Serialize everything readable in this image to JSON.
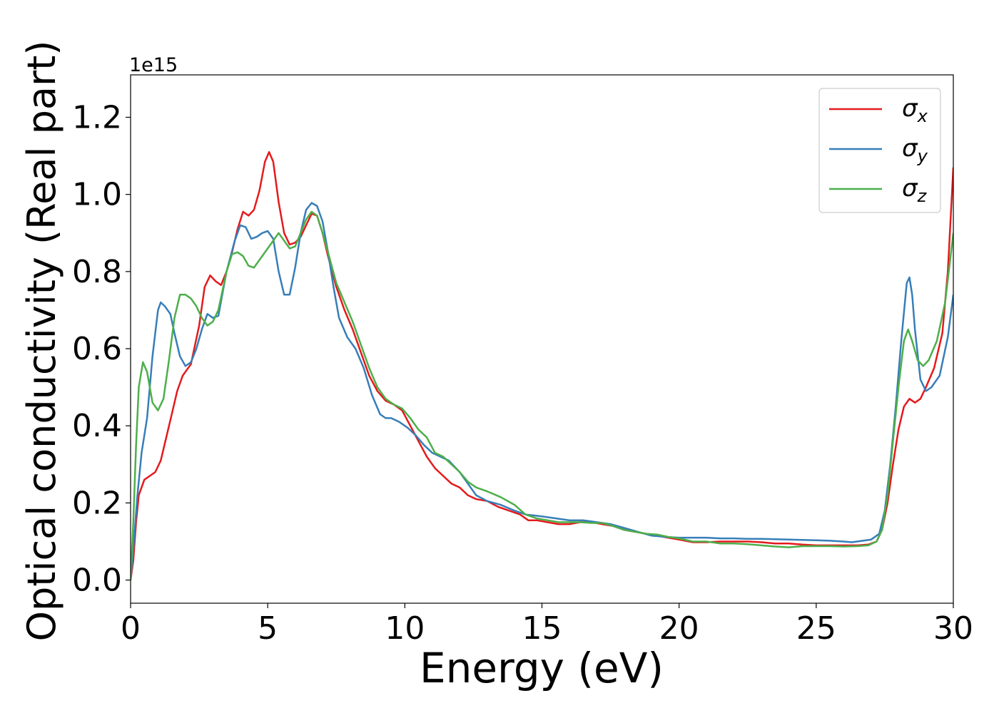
{
  "chart_data": {
    "type": "line",
    "xlabel": "Energy (eV)",
    "ylabel": "Optical conductivity (Real part)",
    "y_offset_label": "1e15",
    "xlim": [
      0,
      30
    ],
    "ylim": [
      -0.06,
      1.31
    ],
    "xticks": [
      0,
      5,
      10,
      15,
      20,
      25,
      30
    ],
    "xtick_labels": [
      "0",
      "5",
      "10",
      "15",
      "20",
      "25",
      "30"
    ],
    "yticks": [
      0.0,
      0.2,
      0.4,
      0.6,
      0.8,
      1.0,
      1.2
    ],
    "ytick_labels": [
      "0.0",
      "0.2",
      "0.4",
      "0.6",
      "0.8",
      "1.0",
      "1.2"
    ],
    "grid": false,
    "legend_position": "top-right",
    "series": [
      {
        "name": "σx",
        "legend_base": "σ",
        "legend_sub": "x",
        "color": "#e41a1c",
        "points": [
          [
            0,
            0.0
          ],
          [
            0.1,
            0.05
          ],
          [
            0.2,
            0.15
          ],
          [
            0.3,
            0.22
          ],
          [
            0.5,
            0.26
          ],
          [
            0.7,
            0.27
          ],
          [
            0.9,
            0.28
          ],
          [
            1.1,
            0.31
          ],
          [
            1.3,
            0.37
          ],
          [
            1.5,
            0.43
          ],
          [
            1.7,
            0.49
          ],
          [
            1.9,
            0.53
          ],
          [
            2.2,
            0.56
          ],
          [
            2.5,
            0.66
          ],
          [
            2.7,
            0.76
          ],
          [
            2.9,
            0.79
          ],
          [
            3.1,
            0.775
          ],
          [
            3.3,
            0.765
          ],
          [
            3.5,
            0.8
          ],
          [
            3.7,
            0.85
          ],
          [
            3.9,
            0.91
          ],
          [
            4.1,
            0.955
          ],
          [
            4.3,
            0.945
          ],
          [
            4.5,
            0.96
          ],
          [
            4.7,
            1.01
          ],
          [
            4.9,
            1.085
          ],
          [
            5.05,
            1.11
          ],
          [
            5.2,
            1.085
          ],
          [
            5.4,
            0.98
          ],
          [
            5.6,
            0.9
          ],
          [
            5.8,
            0.87
          ],
          [
            6.0,
            0.875
          ],
          [
            6.2,
            0.89
          ],
          [
            6.4,
            0.92
          ],
          [
            6.6,
            0.95
          ],
          [
            6.8,
            0.945
          ],
          [
            7.0,
            0.9
          ],
          [
            7.2,
            0.84
          ],
          [
            7.5,
            0.76
          ],
          [
            7.8,
            0.7
          ],
          [
            8.1,
            0.65
          ],
          [
            8.4,
            0.59
          ],
          [
            8.7,
            0.53
          ],
          [
            9.0,
            0.49
          ],
          [
            9.3,
            0.465
          ],
          [
            9.6,
            0.455
          ],
          [
            9.9,
            0.44
          ],
          [
            10.2,
            0.4
          ],
          [
            10.5,
            0.36
          ],
          [
            10.8,
            0.32
          ],
          [
            11.1,
            0.29
          ],
          [
            11.4,
            0.27
          ],
          [
            11.7,
            0.25
          ],
          [
            12.0,
            0.24
          ],
          [
            12.3,
            0.22
          ],
          [
            12.6,
            0.21
          ],
          [
            13.0,
            0.205
          ],
          [
            13.4,
            0.19
          ],
          [
            13.8,
            0.18
          ],
          [
            14.2,
            0.17
          ],
          [
            14.5,
            0.155
          ],
          [
            14.8,
            0.155
          ],
          [
            15.2,
            0.15
          ],
          [
            15.6,
            0.145
          ],
          [
            16.0,
            0.145
          ],
          [
            16.4,
            0.15
          ],
          [
            16.8,
            0.15
          ],
          [
            17.2,
            0.145
          ],
          [
            17.6,
            0.14
          ],
          [
            18.0,
            0.13
          ],
          [
            18.4,
            0.125
          ],
          [
            18.8,
            0.12
          ],
          [
            19.2,
            0.115
          ],
          [
            19.6,
            0.11
          ],
          [
            20.0,
            0.105
          ],
          [
            20.5,
            0.098
          ],
          [
            21.0,
            0.098
          ],
          [
            21.5,
            0.1
          ],
          [
            22.0,
            0.1
          ],
          [
            22.5,
            0.1
          ],
          [
            23.0,
            0.098
          ],
          [
            23.5,
            0.095
          ],
          [
            24.0,
            0.095
          ],
          [
            24.5,
            0.092
          ],
          [
            25.0,
            0.09
          ],
          [
            25.5,
            0.09
          ],
          [
            26.0,
            0.09
          ],
          [
            26.5,
            0.09
          ],
          [
            26.9,
            0.092
          ],
          [
            27.2,
            0.1
          ],
          [
            27.4,
            0.13
          ],
          [
            27.6,
            0.2
          ],
          [
            27.8,
            0.3
          ],
          [
            28.0,
            0.39
          ],
          [
            28.2,
            0.45
          ],
          [
            28.4,
            0.47
          ],
          [
            28.6,
            0.46
          ],
          [
            28.8,
            0.47
          ],
          [
            29.0,
            0.5
          ],
          [
            29.3,
            0.55
          ],
          [
            29.6,
            0.64
          ],
          [
            29.8,
            0.8
          ],
          [
            30.0,
            1.07
          ]
        ]
      },
      {
        "name": "σy",
        "legend_base": "σ",
        "legend_sub": "y",
        "color": "#377eb8",
        "points": [
          [
            0,
            0.0
          ],
          [
            0.1,
            0.08
          ],
          [
            0.25,
            0.22
          ],
          [
            0.4,
            0.33
          ],
          [
            0.6,
            0.42
          ],
          [
            0.8,
            0.58
          ],
          [
            1.0,
            0.7
          ],
          [
            1.1,
            0.72
          ],
          [
            1.25,
            0.71
          ],
          [
            1.45,
            0.69
          ],
          [
            1.6,
            0.64
          ],
          [
            1.8,
            0.58
          ],
          [
            2.0,
            0.555
          ],
          [
            2.2,
            0.565
          ],
          [
            2.4,
            0.6
          ],
          [
            2.6,
            0.65
          ],
          [
            2.8,
            0.69
          ],
          [
            3.0,
            0.68
          ],
          [
            3.2,
            0.685
          ],
          [
            3.5,
            0.8
          ],
          [
            3.8,
            0.88
          ],
          [
            4.0,
            0.92
          ],
          [
            4.2,
            0.915
          ],
          [
            4.4,
            0.885
          ],
          [
            4.6,
            0.89
          ],
          [
            4.8,
            0.9
          ],
          [
            5.0,
            0.905
          ],
          [
            5.2,
            0.885
          ],
          [
            5.4,
            0.8
          ],
          [
            5.6,
            0.74
          ],
          [
            5.8,
            0.74
          ],
          [
            6.0,
            0.81
          ],
          [
            6.2,
            0.9
          ],
          [
            6.4,
            0.96
          ],
          [
            6.6,
            0.978
          ],
          [
            6.8,
            0.97
          ],
          [
            7.0,
            0.93
          ],
          [
            7.2,
            0.85
          ],
          [
            7.4,
            0.76
          ],
          [
            7.6,
            0.68
          ],
          [
            7.9,
            0.63
          ],
          [
            8.2,
            0.6
          ],
          [
            8.5,
            0.55
          ],
          [
            8.8,
            0.48
          ],
          [
            9.1,
            0.43
          ],
          [
            9.3,
            0.42
          ],
          [
            9.5,
            0.42
          ],
          [
            9.8,
            0.41
          ],
          [
            10.1,
            0.395
          ],
          [
            10.4,
            0.375
          ],
          [
            10.7,
            0.35
          ],
          [
            11.0,
            0.33
          ],
          [
            11.3,
            0.32
          ],
          [
            11.6,
            0.31
          ],
          [
            12.0,
            0.28
          ],
          [
            12.3,
            0.25
          ],
          [
            12.6,
            0.22
          ],
          [
            13.0,
            0.205
          ],
          [
            13.5,
            0.195
          ],
          [
            14.0,
            0.18
          ],
          [
            14.4,
            0.17
          ],
          [
            15.0,
            0.165
          ],
          [
            15.5,
            0.16
          ],
          [
            16.0,
            0.155
          ],
          [
            16.5,
            0.155
          ],
          [
            17.0,
            0.15
          ],
          [
            17.5,
            0.145
          ],
          [
            18.0,
            0.135
          ],
          [
            18.5,
            0.125
          ],
          [
            19.0,
            0.115
          ],
          [
            19.5,
            0.112
          ],
          [
            20.0,
            0.11
          ],
          [
            20.5,
            0.11
          ],
          [
            21.0,
            0.11
          ],
          [
            21.5,
            0.108
          ],
          [
            22.0,
            0.108
          ],
          [
            22.5,
            0.107
          ],
          [
            23.0,
            0.107
          ],
          [
            23.5,
            0.106
          ],
          [
            24.0,
            0.105
          ],
          [
            24.5,
            0.104
          ],
          [
            25.0,
            0.103
          ],
          [
            25.5,
            0.102
          ],
          [
            26.0,
            0.1
          ],
          [
            26.3,
            0.098
          ],
          [
            26.7,
            0.102
          ],
          [
            27.0,
            0.105
          ],
          [
            27.3,
            0.12
          ],
          [
            27.5,
            0.18
          ],
          [
            27.7,
            0.3
          ],
          [
            27.9,
            0.45
          ],
          [
            28.1,
            0.62
          ],
          [
            28.3,
            0.77
          ],
          [
            28.4,
            0.785
          ],
          [
            28.5,
            0.74
          ],
          [
            28.6,
            0.65
          ],
          [
            28.8,
            0.52
          ],
          [
            29.0,
            0.49
          ],
          [
            29.2,
            0.5
          ],
          [
            29.5,
            0.53
          ],
          [
            29.8,
            0.63
          ],
          [
            30.0,
            0.74
          ]
        ]
      },
      {
        "name": "σz",
        "legend_base": "σ",
        "legend_sub": "z",
        "color": "#4daf4a",
        "points": [
          [
            0,
            0.0
          ],
          [
            0.1,
            0.15
          ],
          [
            0.2,
            0.35
          ],
          [
            0.3,
            0.5
          ],
          [
            0.45,
            0.565
          ],
          [
            0.6,
            0.54
          ],
          [
            0.8,
            0.46
          ],
          [
            1.0,
            0.44
          ],
          [
            1.2,
            0.47
          ],
          [
            1.4,
            0.57
          ],
          [
            1.6,
            0.68
          ],
          [
            1.8,
            0.74
          ],
          [
            2.0,
            0.74
          ],
          [
            2.2,
            0.73
          ],
          [
            2.4,
            0.71
          ],
          [
            2.6,
            0.68
          ],
          [
            2.8,
            0.66
          ],
          [
            3.0,
            0.67
          ],
          [
            3.2,
            0.7
          ],
          [
            3.5,
            0.8
          ],
          [
            3.7,
            0.845
          ],
          [
            3.9,
            0.85
          ],
          [
            4.1,
            0.84
          ],
          [
            4.3,
            0.815
          ],
          [
            4.5,
            0.81
          ],
          [
            4.7,
            0.83
          ],
          [
            5.0,
            0.86
          ],
          [
            5.2,
            0.88
          ],
          [
            5.4,
            0.9
          ],
          [
            5.6,
            0.88
          ],
          [
            5.8,
            0.86
          ],
          [
            6.0,
            0.865
          ],
          [
            6.2,
            0.9
          ],
          [
            6.4,
            0.935
          ],
          [
            6.6,
            0.955
          ],
          [
            6.8,
            0.945
          ],
          [
            7.0,
            0.9
          ],
          [
            7.2,
            0.85
          ],
          [
            7.5,
            0.77
          ],
          [
            7.8,
            0.72
          ],
          [
            8.1,
            0.67
          ],
          [
            8.4,
            0.61
          ],
          [
            8.7,
            0.55
          ],
          [
            9.0,
            0.5
          ],
          [
            9.3,
            0.47
          ],
          [
            9.6,
            0.455
          ],
          [
            9.9,
            0.445
          ],
          [
            10.2,
            0.42
          ],
          [
            10.5,
            0.39
          ],
          [
            10.8,
            0.37
          ],
          [
            11.1,
            0.33
          ],
          [
            11.4,
            0.32
          ],
          [
            11.7,
            0.3
          ],
          [
            12.0,
            0.28
          ],
          [
            12.3,
            0.255
          ],
          [
            12.6,
            0.24
          ],
          [
            13.0,
            0.23
          ],
          [
            13.5,
            0.215
          ],
          [
            14.0,
            0.195
          ],
          [
            14.4,
            0.17
          ],
          [
            14.8,
            0.16
          ],
          [
            15.2,
            0.155
          ],
          [
            15.6,
            0.15
          ],
          [
            16.0,
            0.15
          ],
          [
            16.4,
            0.15
          ],
          [
            16.8,
            0.148
          ],
          [
            17.2,
            0.148
          ],
          [
            17.6,
            0.14
          ],
          [
            18.0,
            0.13
          ],
          [
            18.4,
            0.125
          ],
          [
            18.8,
            0.12
          ],
          [
            19.2,
            0.118
          ],
          [
            19.6,
            0.112
          ],
          [
            20.0,
            0.108
          ],
          [
            20.5,
            0.1
          ],
          [
            21.0,
            0.1
          ],
          [
            21.5,
            0.095
          ],
          [
            22.0,
            0.095
          ],
          [
            22.5,
            0.093
          ],
          [
            23.0,
            0.09
          ],
          [
            23.5,
            0.087
          ],
          [
            24.0,
            0.085
          ],
          [
            24.5,
            0.088
          ],
          [
            25.0,
            0.088
          ],
          [
            25.5,
            0.088
          ],
          [
            26.0,
            0.087
          ],
          [
            26.5,
            0.088
          ],
          [
            26.9,
            0.09
          ],
          [
            27.2,
            0.1
          ],
          [
            27.4,
            0.13
          ],
          [
            27.6,
            0.22
          ],
          [
            27.8,
            0.36
          ],
          [
            28.0,
            0.5
          ],
          [
            28.2,
            0.62
          ],
          [
            28.35,
            0.65
          ],
          [
            28.5,
            0.62
          ],
          [
            28.7,
            0.57
          ],
          [
            28.9,
            0.555
          ],
          [
            29.1,
            0.57
          ],
          [
            29.4,
            0.62
          ],
          [
            29.7,
            0.72
          ],
          [
            30.0,
            0.9
          ]
        ]
      }
    ]
  }
}
